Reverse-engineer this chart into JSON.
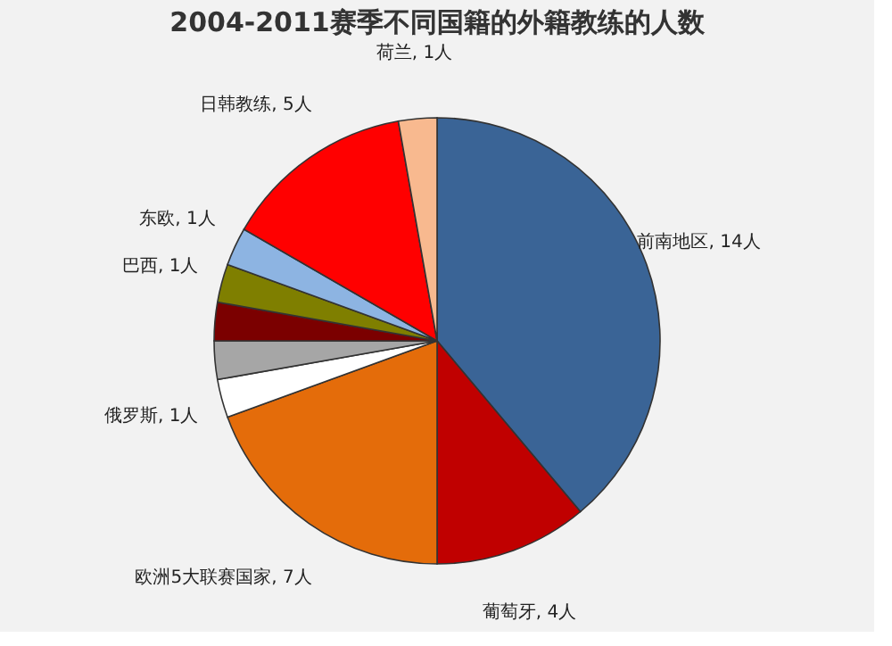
{
  "chart_data": {
    "type": "pie",
    "title": "2004-2011赛季不同国籍的外籍教练的人数",
    "categories": [
      "前南地区",
      "葡萄牙",
      "欧洲5大联赛国家",
      "俄罗斯",
      null,
      null,
      "巴西",
      "东欧",
      "日韩教练",
      "荷兰"
    ],
    "values": [
      14,
      4,
      7,
      1,
      1,
      1,
      1,
      1,
      5,
      1
    ],
    "colors": [
      "#3a6496",
      "#c00000",
      "#e46c0a",
      "#ffffff",
      "#a6a6a6",
      "#7b0000",
      "#7f7f00",
      "#8db4e2",
      "#ff0000",
      "#f8b98f"
    ],
    "value_labels": [
      ", 14人",
      ", 4人",
      ", 7人",
      ", 1人",
      null,
      null,
      ", 1人",
      ", 1人",
      ", 5人",
      ", 1人"
    ]
  }
}
